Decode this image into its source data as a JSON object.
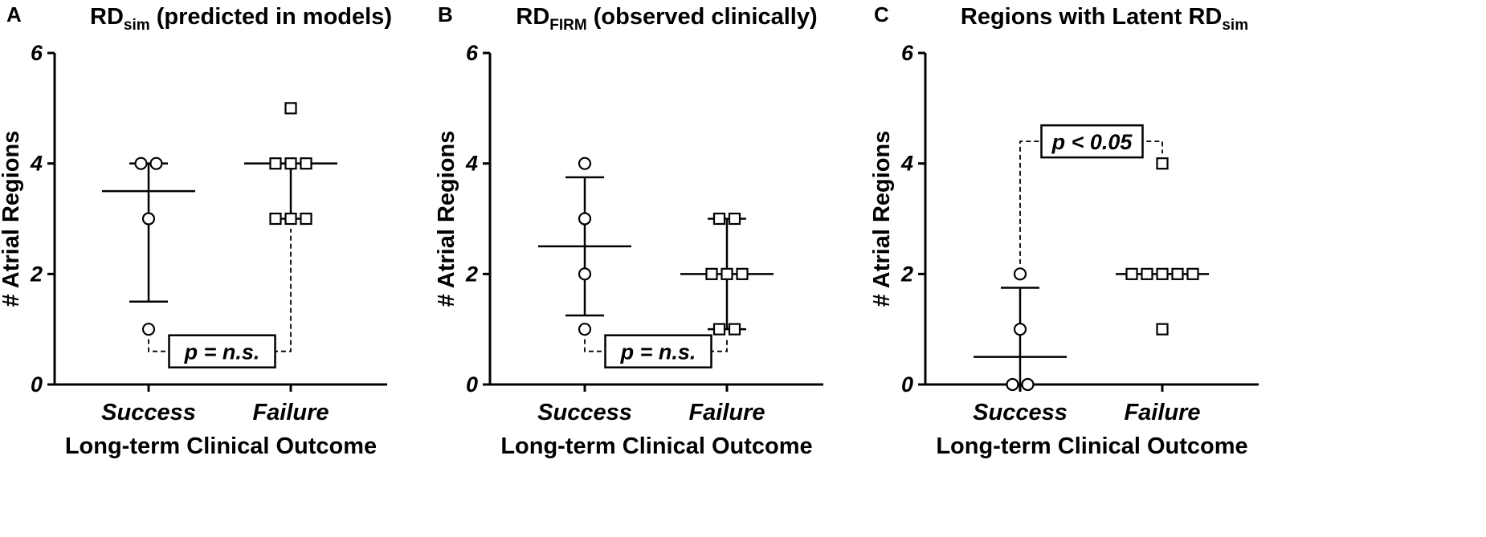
{
  "chart_data": [
    {
      "panel": "A",
      "type": "scatter",
      "title": "RD",
      "title_subscript": "sim",
      "title_rest": " (predicted in models)",
      "ylabel": "# Atrial Regions",
      "xlabel": "Long-term Clinical Outcome",
      "ylim": [
        0,
        6
      ],
      "yticks": [
        "0",
        "2",
        "4",
        "6"
      ],
      "categories": [
        "Success",
        "Failure"
      ],
      "series": [
        {
          "category": "Success",
          "marker": "circle",
          "values": [
            4,
            4,
            3,
            1
          ],
          "mean": 3.5,
          "sd_low": 1.5,
          "sd_high": 4.0
        },
        {
          "category": "Failure",
          "marker": "square",
          "values": [
            5,
            4,
            4,
            4,
            3,
            3,
            3
          ],
          "mean": 4.0,
          "sd_low": 3.0,
          "sd_high": 4.0
        }
      ],
      "annotation": {
        "text": "p = n.s.",
        "position": "bottom"
      }
    },
    {
      "panel": "B",
      "type": "scatter",
      "title": "RD",
      "title_subscript": "FIRM",
      "title_rest": " (observed clinically)",
      "ylabel": "# Atrial Regions",
      "xlabel": "Long-term Clinical Outcome",
      "ylim": [
        0,
        6
      ],
      "yticks": [
        "0",
        "2",
        "4",
        "6"
      ],
      "categories": [
        "Success",
        "Failure"
      ],
      "series": [
        {
          "category": "Success",
          "marker": "circle",
          "values": [
            4,
            3,
            2,
            1
          ],
          "mean": 2.5,
          "sd_low": 1.25,
          "sd_high": 3.75
        },
        {
          "category": "Failure",
          "marker": "square",
          "values": [
            3,
            3,
            2,
            2,
            2,
            1,
            1
          ],
          "mean": 2.0,
          "sd_low": 1.0,
          "sd_high": 3.0
        }
      ],
      "annotation": {
        "text": "p = n.s.",
        "position": "bottom"
      }
    },
    {
      "panel": "C",
      "type": "scatter",
      "title": "Regions with Latent RD",
      "title_subscript": "sim",
      "title_rest": "",
      "ylabel": "# Atrial Regions",
      "xlabel": "Long-term Clinical Outcome",
      "ylim": [
        0,
        6
      ],
      "yticks": [
        "0",
        "2",
        "4",
        "6"
      ],
      "categories": [
        "Success",
        "Failure"
      ],
      "series": [
        {
          "category": "Success",
          "marker": "circle",
          "values": [
            2,
            1,
            0,
            0
          ],
          "mean": 0.5,
          "sd_low": 0,
          "sd_high": 1.75
        },
        {
          "category": "Failure",
          "marker": "square",
          "values": [
            4,
            2,
            2,
            2,
            2,
            2,
            1
          ],
          "mean": 2.0,
          "sd_low": 2.0,
          "sd_high": 2.0
        }
      ],
      "annotation": {
        "text": "p < 0.05",
        "position": "top"
      }
    }
  ]
}
